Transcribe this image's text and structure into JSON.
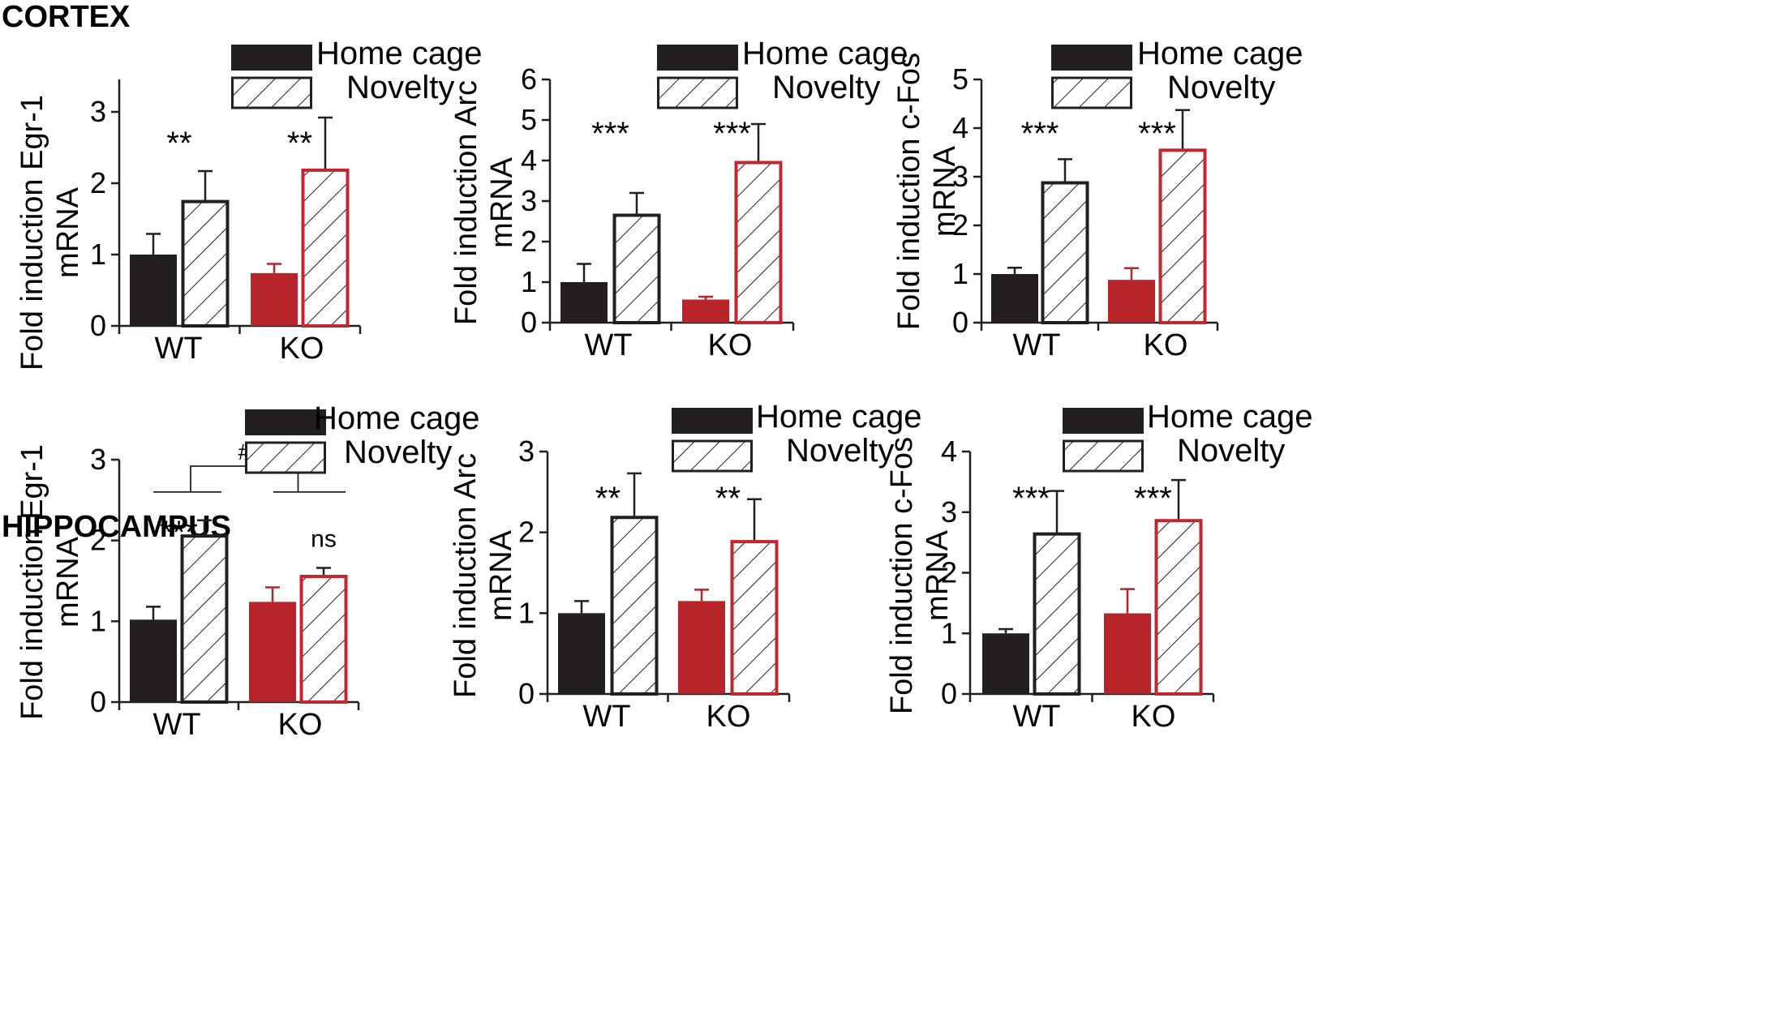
{
  "sections": [
    {
      "id": "cortex",
      "title": "CORTEX"
    },
    {
      "id": "hippocampus",
      "title": "HIPPOCAMPUS"
    }
  ],
  "colors": {
    "wt_fill": "#231f20",
    "ko_fill": "#b7242a",
    "axis": "#231f20",
    "novelty_wt_stroke": "#231f20",
    "novelty_ko_stroke": "#c1272d"
  },
  "chart_data": [
    {
      "type": "bar",
      "section": "cortex",
      "gene": "Egr-1",
      "ylabel_line1": "Fold induction Egr-1",
      "ylabel_line2": "mRNA",
      "categories": [
        "WT",
        "KO"
      ],
      "legend": [
        "Home cage",
        "Novelty"
      ],
      "ylim": [
        0,
        3.5
      ],
      "yticks": [
        0,
        1,
        2,
        3
      ],
      "series": [
        {
          "name": "Home cage",
          "values": [
            1.0,
            0.74
          ],
          "errors": [
            0.29,
            0.13
          ]
        },
        {
          "name": "Novelty",
          "values": [
            1.76,
            2.2
          ],
          "errors": [
            0.41,
            0.72
          ]
        }
      ],
      "annotations": [
        "**",
        "**"
      ]
    },
    {
      "type": "bar",
      "section": "cortex",
      "gene": "Arc",
      "ylabel_line1": "Fold induction Arc",
      "ylabel_line2": "mRNA",
      "categories": [
        "WT",
        "KO"
      ],
      "legend": [
        "Home cage",
        "Novelty"
      ],
      "ylim": [
        0,
        6
      ],
      "yticks": [
        0,
        1,
        2,
        3,
        4,
        5,
        6
      ],
      "series": [
        {
          "name": "Home cage",
          "values": [
            1.0,
            0.57
          ],
          "errors": [
            0.45,
            0.07
          ]
        },
        {
          "name": "Novelty",
          "values": [
            2.68,
            3.98
          ],
          "errors": [
            0.52,
            0.92
          ]
        }
      ],
      "annotations": [
        "***",
        "***"
      ]
    },
    {
      "type": "bar",
      "section": "cortex",
      "gene": "c-Fos",
      "ylabel_line1": "Fold induction c-Fos",
      "ylabel_line2": "mRNA",
      "categories": [
        "WT",
        "KO"
      ],
      "legend": [
        "Home cage",
        "Novelty"
      ],
      "ylim": [
        0,
        5
      ],
      "yticks": [
        0,
        1,
        2,
        3,
        4,
        5
      ],
      "series": [
        {
          "name": "Home cage",
          "values": [
            1.0,
            0.88
          ],
          "errors": [
            0.13,
            0.24
          ]
        },
        {
          "name": "Novelty",
          "values": [
            2.9,
            3.57
          ],
          "errors": [
            0.46,
            0.8
          ]
        }
      ],
      "annotations": [
        "***",
        "***"
      ]
    },
    {
      "type": "bar",
      "section": "hippocampus",
      "gene": "Egr-1",
      "ylabel_line1": "Fold induction Egr-1",
      "ylabel_line2": "mRNA",
      "categories": [
        "WT",
        "KO"
      ],
      "legend": [
        "Home cage",
        "Novelty"
      ],
      "ylim": [
        0,
        3
      ],
      "yticks": [
        0,
        1,
        2,
        3
      ],
      "series": [
        {
          "name": "Home cage",
          "values": [
            1.02,
            1.24
          ],
          "errors": [
            0.16,
            0.18
          ]
        },
        {
          "name": "Novelty",
          "values": [
            2.07,
            1.57
          ],
          "errors": [
            0.18,
            0.09
          ]
        }
      ],
      "annotations": [
        "***",
        "ns"
      ],
      "comparison": {
        "label": "#",
        "level": 2.92,
        "sublevel": 2.6
      }
    },
    {
      "type": "bar",
      "section": "hippocampus",
      "gene": "Arc",
      "ylabel_line1": "Fold induction Arc",
      "ylabel_line2": "mRNA",
      "categories": [
        "WT",
        "KO"
      ],
      "legend": [
        "Home cage",
        "Novelty"
      ],
      "ylim": [
        0,
        3
      ],
      "yticks": [
        0,
        1,
        2,
        3
      ],
      "series": [
        {
          "name": "Home cage",
          "values": [
            1.0,
            1.15
          ],
          "errors": [
            0.15,
            0.14
          ]
        },
        {
          "name": "Novelty",
          "values": [
            2.2,
            1.9
          ],
          "errors": [
            0.53,
            0.51
          ]
        }
      ],
      "annotations": [
        "**",
        "**"
      ]
    },
    {
      "type": "bar",
      "section": "hippocampus",
      "gene": "c-Fos",
      "ylabel_line1": "Fold induction c-Fos",
      "ylabel_line2": "mRNA",
      "categories": [
        "WT",
        "KO"
      ],
      "legend": [
        "Home cage",
        "Novelty"
      ],
      "ylim": [
        0,
        4
      ],
      "yticks": [
        0,
        1,
        2,
        3,
        4
      ],
      "series": [
        {
          "name": "Home cage",
          "values": [
            1.0,
            1.33
          ],
          "errors": [
            0.07,
            0.4
          ]
        },
        {
          "name": "Novelty",
          "values": [
            2.66,
            2.88
          ],
          "errors": [
            0.69,
            0.65
          ]
        }
      ],
      "annotations": [
        "***",
        "***"
      ]
    }
  ]
}
